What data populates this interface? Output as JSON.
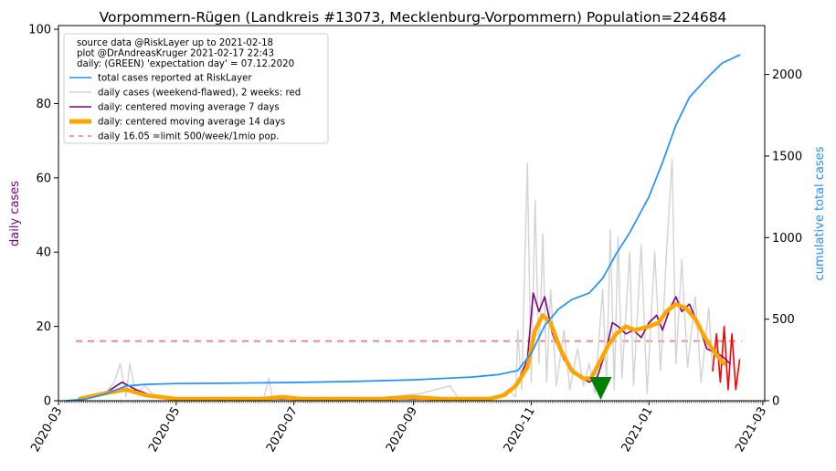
{
  "chart_data": {
    "type": "line",
    "title": "Vorpommern-Rügen (Landkreis #13073, Mecklenburg-Vorpommern) Population=224684",
    "ylabel_left": "daily cases",
    "ylabel_right": "cumulative total cases",
    "left_ylim": [
      0,
      101
    ],
    "right_ylim": [
      0,
      2300
    ],
    "left_yticks": [
      "0",
      "20",
      "40",
      "60",
      "80",
      "100"
    ],
    "right_yticks": [
      "0",
      "500",
      "1000",
      "1500",
      "2000"
    ],
    "x_range": [
      "2020-03-01",
      "2021-03-02"
    ],
    "xtick_labels": [
      "2020-03",
      "2020-05",
      "2020-07",
      "2020-09",
      "2020-11",
      "2021-01",
      "2021-03"
    ],
    "info_lines": [
      "source data @RiskLayer up to 2021-02-18",
      "plot @DrAndreasKruger 2021-02-17 22:43",
      "daily: (GREEN) 'expectation day' = 07.12.2020"
    ],
    "legend": [
      {
        "label": "total cases reported at RiskLayer",
        "color": "#1e90ff",
        "style": "line"
      },
      {
        "label": "daily cases (weekend-flawed), 2 weeks: red",
        "color": "#d3d3d3",
        "style": "line"
      },
      {
        "label": "daily: centered moving average 7 days",
        "color": "#800080",
        "style": "line"
      },
      {
        "label": "daily: centered moving average 14 days",
        "color": "#ffa500",
        "style": "thick"
      },
      {
        "label": "daily 16.05 =limit 500/week/1mio pop.",
        "color": "#f08080",
        "style": "dashed"
      }
    ],
    "limit_value": 16.05,
    "limit_range": [
      "2020-03-10",
      "2021-02-18"
    ],
    "expectation_day": "2020-12-07",
    "series": [
      {
        "name": "total cases reported at RiskLayer",
        "axis": "right",
        "color": "#1e90ff",
        "points": [
          [
            "2020-03-05",
            0
          ],
          [
            "2020-03-15",
            10
          ],
          [
            "2020-03-25",
            40
          ],
          [
            "2020-04-05",
            90
          ],
          [
            "2020-04-15",
            100
          ],
          [
            "2020-05-01",
            105
          ],
          [
            "2020-06-01",
            108
          ],
          [
            "2020-07-01",
            112
          ],
          [
            "2020-08-01",
            118
          ],
          [
            "2020-09-01",
            128
          ],
          [
            "2020-10-01",
            145
          ],
          [
            "2020-10-15",
            160
          ],
          [
            "2020-10-25",
            185
          ],
          [
            "2020-11-01",
            290
          ],
          [
            "2020-11-08",
            460
          ],
          [
            "2020-11-15",
            560
          ],
          [
            "2020-11-22",
            620
          ],
          [
            "2020-12-01",
            660
          ],
          [
            "2020-12-08",
            750
          ],
          [
            "2020-12-15",
            900
          ],
          [
            "2020-12-22",
            1030
          ],
          [
            "2021-01-01",
            1250
          ],
          [
            "2021-01-08",
            1460
          ],
          [
            "2021-01-15",
            1690
          ],
          [
            "2021-01-22",
            1860
          ],
          [
            "2021-02-01",
            1990
          ],
          [
            "2021-02-08",
            2070
          ],
          [
            "2021-02-17",
            2120
          ]
        ]
      },
      {
        "name": "daily cases (weekend-flawed)",
        "axis": "left",
        "color": "#d3d3d3",
        "points": [
          [
            "2020-03-05",
            0
          ],
          [
            "2020-03-15",
            0.5
          ],
          [
            "2020-03-25",
            2
          ],
          [
            "2020-03-30",
            5
          ],
          [
            "2020-04-02",
            10
          ],
          [
            "2020-04-05",
            1
          ],
          [
            "2020-04-07",
            10
          ],
          [
            "2020-04-10",
            2
          ],
          [
            "2020-04-15",
            4
          ],
          [
            "2020-04-20",
            1
          ],
          [
            "2020-05-01",
            0
          ],
          [
            "2020-06-15",
            0
          ],
          [
            "2020-06-18",
            6
          ],
          [
            "2020-06-20",
            0
          ],
          [
            "2020-08-01",
            0
          ],
          [
            "2020-09-05",
            2
          ],
          [
            "2020-09-20",
            4
          ],
          [
            "2020-09-25",
            0
          ],
          [
            "2020-10-15",
            1
          ],
          [
            "2020-10-20",
            3
          ],
          [
            "2020-10-24",
            1
          ],
          [
            "2020-10-25",
            19
          ],
          [
            "2020-10-27",
            3
          ],
          [
            "2020-10-30",
            64
          ],
          [
            "2020-11-01",
            5
          ],
          [
            "2020-11-03",
            54
          ],
          [
            "2020-11-05",
            10
          ],
          [
            "2020-11-07",
            45
          ],
          [
            "2020-11-09",
            5
          ],
          [
            "2020-11-11",
            30
          ],
          [
            "2020-11-14",
            4
          ],
          [
            "2020-11-18",
            19
          ],
          [
            "2020-11-21",
            3
          ],
          [
            "2020-11-25",
            14
          ],
          [
            "2020-11-28",
            4
          ],
          [
            "2020-12-01",
            10
          ],
          [
            "2020-12-04",
            2
          ],
          [
            "2020-12-08",
            30
          ],
          [
            "2020-12-10",
            5
          ],
          [
            "2020-12-12",
            46
          ],
          [
            "2020-12-14",
            3
          ],
          [
            "2020-12-16",
            44
          ],
          [
            "2020-12-18",
            6
          ],
          [
            "2020-12-22",
            40
          ],
          [
            "2020-12-24",
            4
          ],
          [
            "2020-12-28",
            42
          ],
          [
            "2020-12-31",
            2
          ],
          [
            "2021-01-04",
            40
          ],
          [
            "2021-01-07",
            8
          ],
          [
            "2021-01-10",
            39
          ],
          [
            "2021-01-13",
            65
          ],
          [
            "2021-01-15",
            10
          ],
          [
            "2021-01-18",
            38
          ],
          [
            "2021-01-21",
            9
          ],
          [
            "2021-01-25",
            28
          ],
          [
            "2021-01-28",
            5
          ],
          [
            "2021-02-01",
            25
          ],
          [
            "2021-02-03",
            8
          ]
        ]
      },
      {
        "name": "daily cases last 2 weeks",
        "axis": "left",
        "color": "#ff0000",
        "points": [
          [
            "2021-02-03",
            8
          ],
          [
            "2021-02-05",
            18
          ],
          [
            "2021-02-07",
            5
          ],
          [
            "2021-02-09",
            20
          ],
          [
            "2021-02-11",
            3
          ],
          [
            "2021-02-13",
            18
          ],
          [
            "2021-02-15",
            3
          ],
          [
            "2021-02-17",
            11
          ]
        ]
      },
      {
        "name": "daily: centered moving average 7 days",
        "axis": "left",
        "color": "#800080",
        "points": [
          [
            "2020-03-12",
            0.5
          ],
          [
            "2020-03-25",
            2
          ],
          [
            "2020-04-03",
            5
          ],
          [
            "2020-04-10",
            3
          ],
          [
            "2020-04-20",
            1
          ],
          [
            "2020-05-10",
            0.5
          ],
          [
            "2020-07-01",
            0.5
          ],
          [
            "2020-09-01",
            0.5
          ],
          [
            "2020-10-10",
            0.5
          ],
          [
            "2020-10-20",
            2
          ],
          [
            "2020-10-25",
            5
          ],
          [
            "2020-10-30",
            11
          ],
          [
            "2020-11-02",
            29
          ],
          [
            "2020-11-05",
            24
          ],
          [
            "2020-11-08",
            28
          ],
          [
            "2020-11-12",
            18
          ],
          [
            "2020-11-18",
            11
          ],
          [
            "2020-11-25",
            7
          ],
          [
            "2020-12-01",
            5
          ],
          [
            "2020-12-05",
            6
          ],
          [
            "2020-12-10",
            14
          ],
          [
            "2020-12-13",
            21
          ],
          [
            "2020-12-16",
            20
          ],
          [
            "2020-12-20",
            18
          ],
          [
            "2020-12-24",
            19
          ],
          [
            "2020-12-28",
            17
          ],
          [
            "2021-01-01",
            21
          ],
          [
            "2021-01-05",
            23
          ],
          [
            "2021-01-08",
            19
          ],
          [
            "2021-01-12",
            25
          ],
          [
            "2021-01-15",
            28
          ],
          [
            "2021-01-18",
            24
          ],
          [
            "2021-01-22",
            26
          ],
          [
            "2021-01-27",
            20
          ],
          [
            "2021-01-31",
            14
          ],
          [
            "2021-02-04",
            13
          ],
          [
            "2021-02-08",
            12
          ],
          [
            "2021-02-12",
            10
          ]
        ]
      },
      {
        "name": "daily: centered moving average 14 days",
        "axis": "left",
        "color": "#ffa500",
        "points": [
          [
            "2020-03-12",
            0.5
          ],
          [
            "2020-03-25",
            2
          ],
          [
            "2020-04-05",
            3
          ],
          [
            "2020-04-15",
            1.5
          ],
          [
            "2020-05-01",
            0.5
          ],
          [
            "2020-06-15",
            0.5
          ],
          [
            "2020-06-25",
            1
          ],
          [
            "2020-07-05",
            0.5
          ],
          [
            "2020-08-15",
            0.5
          ],
          [
            "2020-09-01",
            1
          ],
          [
            "2020-09-15",
            0.5
          ],
          [
            "2020-10-10",
            0.5
          ],
          [
            "2020-10-18",
            1.5
          ],
          [
            "2020-10-24",
            4
          ],
          [
            "2020-10-30",
            9
          ],
          [
            "2020-11-03",
            19
          ],
          [
            "2020-11-07",
            23
          ],
          [
            "2020-11-11",
            21
          ],
          [
            "2020-11-16",
            14
          ],
          [
            "2020-11-22",
            8
          ],
          [
            "2020-11-28",
            6
          ],
          [
            "2020-12-02",
            6
          ],
          [
            "2020-12-07",
            11
          ],
          [
            "2020-12-11",
            15
          ],
          [
            "2020-12-15",
            18
          ],
          [
            "2020-12-20",
            20
          ],
          [
            "2020-12-25",
            19
          ],
          [
            "2021-01-01",
            20
          ],
          [
            "2021-01-06",
            21
          ],
          [
            "2021-01-10",
            24
          ],
          [
            "2021-01-15",
            26
          ],
          [
            "2021-01-20",
            25
          ],
          [
            "2021-01-25",
            22
          ],
          [
            "2021-01-30",
            17
          ],
          [
            "2021-02-04",
            13
          ],
          [
            "2021-02-09",
            10
          ]
        ]
      }
    ]
  }
}
